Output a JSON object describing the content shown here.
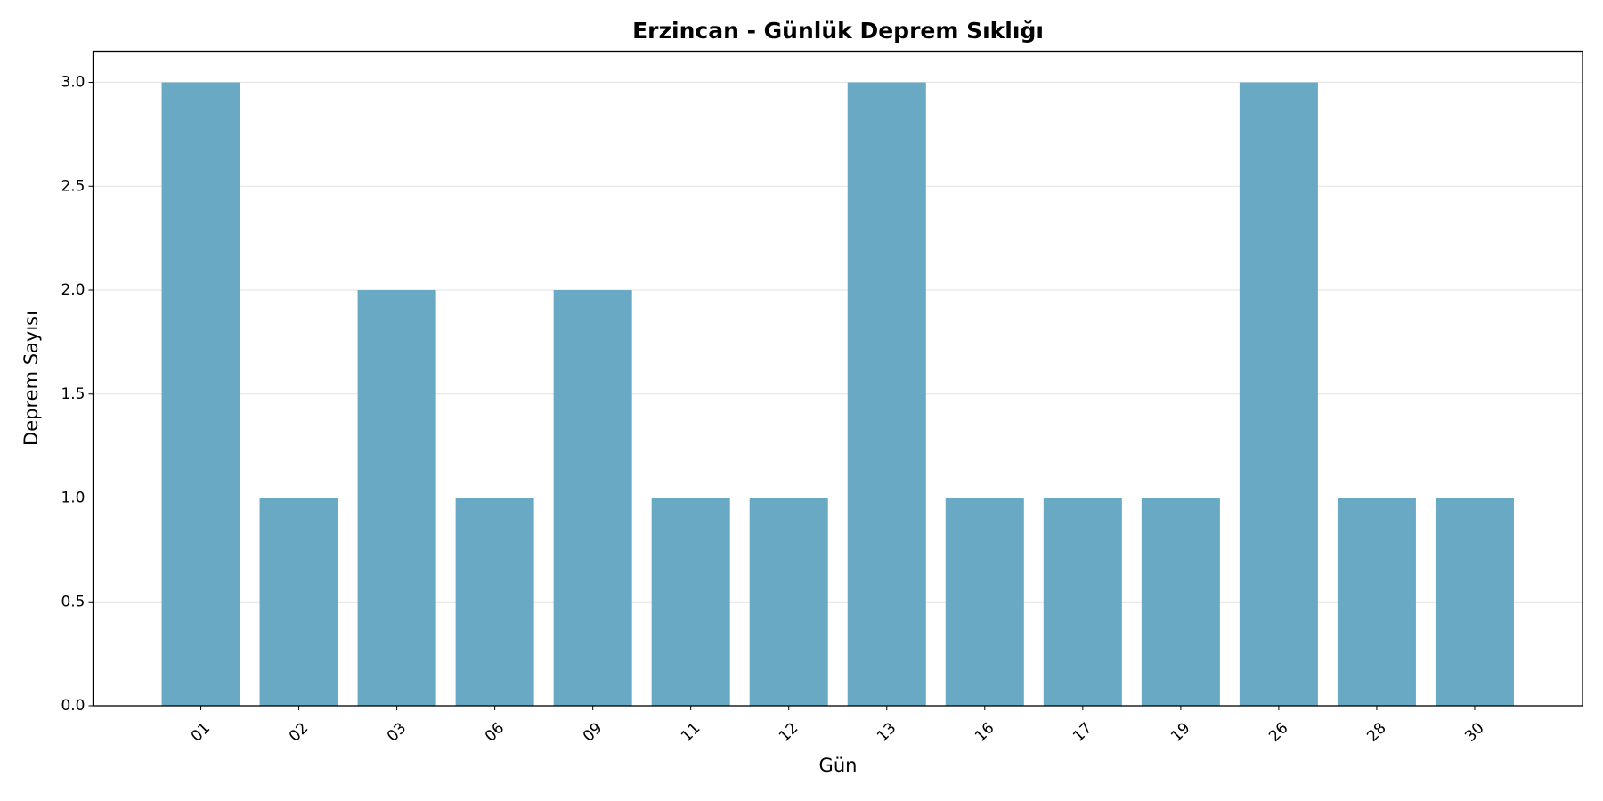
{
  "chart_data": {
    "type": "bar",
    "title": "Erzincan - Günlük Deprem Sıklığı",
    "x_label": "Gün",
    "y_label": "Deprem Sayısı",
    "categories": [
      "01",
      "02",
      "03",
      "06",
      "09",
      "11",
      "12",
      "13",
      "16",
      "17",
      "19",
      "26",
      "28",
      "30"
    ],
    "values": [
      3,
      1,
      2,
      1,
      2,
      1,
      1,
      3,
      1,
      1,
      1,
      3,
      1,
      1
    ],
    "color": "#6aa9c4",
    "ylim": [
      0,
      3.15
    ],
    "yticks": [
      {
        "value": 0,
        "label": "0.0"
      },
      0.5,
      {
        "value": 1,
        "label": "1.0"
      },
      1.5,
      {
        "value": 2,
        "label": "2.0"
      },
      2.5,
      {
        "value": 3,
        "label": "3.0"
      }
    ],
    "grid": true
  }
}
